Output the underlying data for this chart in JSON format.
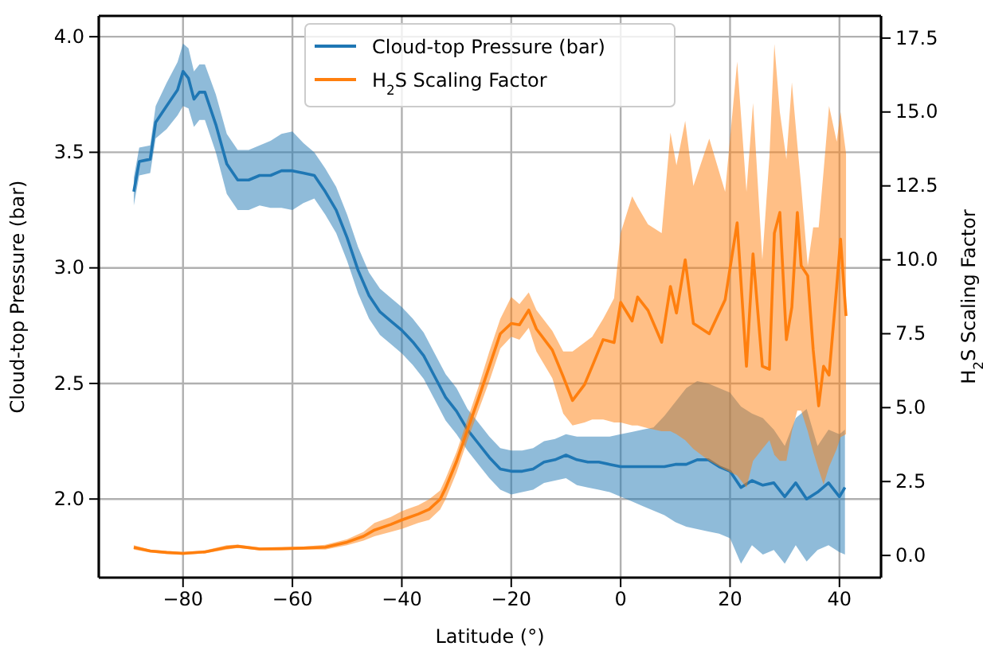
{
  "chart_data": {
    "type": "line",
    "xlabel": "Latitude (°)",
    "ylabel": "Cloud-top Pressure (bar)",
    "y2label": "H$_{2}$S Scaling Factor",
    "xlim": [
      -95.4,
      47.6
    ],
    "xticks": [
      -80,
      -60,
      -40,
      -20,
      0,
      20,
      40
    ],
    "ylim": [
      1.66,
      4.09
    ],
    "yticks": [
      {
        "value": 2.0,
        "label": "2.0"
      },
      {
        "value": 2.5,
        "label": "2.5"
      },
      {
        "value": 3.0,
        "label": "3.0"
      },
      {
        "value": 3.5,
        "label": "3.5"
      },
      {
        "value": 4.0,
        "label": "4.0"
      }
    ],
    "y2lim": [
      -0.75,
      18.25
    ],
    "y2ticks": [
      {
        "value": 0,
        "label": "0.0"
      },
      2.5,
      {
        "value": 5,
        "label": "5.0"
      },
      7.5,
      {
        "value": 10,
        "label": "10.0"
      },
      12.5,
      {
        "value": 15,
        "label": "15.0"
      },
      17.5
    ],
    "grid": true,
    "legend": "top",
    "series": [
      {
        "name": "Cloud-top Pressure (bar)",
        "color": "#1f77b4",
        "x": [
          -89,
          -88,
          -86,
          -85,
          -83,
          -81,
          -80,
          -79,
          -78,
          -77,
          -76,
          -74,
          -72,
          -70,
          -68,
          -66,
          -64,
          -62,
          -60,
          -58,
          -56,
          -54,
          -52,
          -50,
          -48,
          -46,
          -44,
          -42,
          -40,
          -38,
          -36,
          -34,
          -32,
          -30,
          -28,
          -26,
          -24,
          -22,
          -20,
          -18,
          -16,
          -14,
          -12,
          -10,
          -8,
          -6,
          -4,
          -2,
          0,
          2,
          4,
          6,
          8,
          10,
          12,
          14,
          16,
          18,
          20,
          22,
          24,
          26,
          28,
          30,
          32,
          34,
          36,
          38,
          40,
          41
        ],
        "values": [
          3.33,
          3.46,
          3.47,
          3.63,
          3.7,
          3.77,
          3.85,
          3.82,
          3.73,
          3.76,
          3.76,
          3.62,
          3.45,
          3.38,
          3.38,
          3.4,
          3.4,
          3.42,
          3.42,
          3.41,
          3.4,
          3.33,
          3.25,
          3.13,
          2.99,
          2.88,
          2.81,
          2.77,
          2.73,
          2.68,
          2.62,
          2.53,
          2.44,
          2.38,
          2.3,
          2.24,
          2.18,
          2.13,
          2.12,
          2.12,
          2.13,
          2.16,
          2.17,
          2.19,
          2.17,
          2.16,
          2.16,
          2.15,
          2.14,
          2.14,
          2.14,
          2.14,
          2.14,
          2.15,
          2.15,
          2.17,
          2.17,
          2.14,
          2.12,
          2.05,
          2.08,
          2.06,
          2.07,
          2.01,
          2.07,
          2.0,
          2.03,
          2.07,
          2.01,
          2.05
        ],
        "lower": [
          3.27,
          3.4,
          3.41,
          3.56,
          3.6,
          3.66,
          3.7,
          3.69,
          3.61,
          3.64,
          3.64,
          3.5,
          3.32,
          3.25,
          3.25,
          3.27,
          3.26,
          3.26,
          3.25,
          3.28,
          3.3,
          3.23,
          3.15,
          3.03,
          2.89,
          2.78,
          2.71,
          2.67,
          2.63,
          2.58,
          2.52,
          2.43,
          2.34,
          2.28,
          2.21,
          2.15,
          2.09,
          2.04,
          2.02,
          2.03,
          2.04,
          2.07,
          2.08,
          2.09,
          2.06,
          2.05,
          2.04,
          2.03,
          2.01,
          1.99,
          1.97,
          1.95,
          1.93,
          1.9,
          1.88,
          1.87,
          1.86,
          1.85,
          1.83,
          1.72,
          1.8,
          1.76,
          1.78,
          1.72,
          1.8,
          1.73,
          1.78,
          1.8,
          1.77,
          1.76
        ],
        "upper": [
          3.39,
          3.52,
          3.53,
          3.7,
          3.8,
          3.89,
          3.97,
          3.95,
          3.85,
          3.88,
          3.88,
          3.75,
          3.58,
          3.51,
          3.51,
          3.53,
          3.55,
          3.58,
          3.59,
          3.54,
          3.5,
          3.43,
          3.35,
          3.23,
          3.09,
          2.98,
          2.91,
          2.87,
          2.83,
          2.78,
          2.72,
          2.63,
          2.54,
          2.48,
          2.39,
          2.33,
          2.27,
          2.22,
          2.21,
          2.21,
          2.22,
          2.25,
          2.26,
          2.28,
          2.27,
          2.27,
          2.27,
          2.27,
          2.28,
          2.29,
          2.3,
          2.31,
          2.36,
          2.42,
          2.48,
          2.51,
          2.5,
          2.48,
          2.46,
          2.4,
          2.37,
          2.35,
          2.3,
          2.23,
          2.35,
          2.39,
          2.23,
          2.3,
          2.28,
          2.3
        ]
      },
      {
        "name": "H$_{2}$S Scaling Factor",
        "color": "#ff7f0e",
        "axis": "y2",
        "x": [
          -89,
          -86,
          -83,
          -80,
          -76,
          -72,
          -70,
          -66,
          -62,
          -58,
          -54,
          -50,
          -47,
          -45,
          -42,
          -40,
          -37,
          -35,
          -33,
          -32,
          -30,
          -28,
          -26,
          -24,
          -22,
          -20,
          -18.5,
          -16.8,
          -15.4,
          -12.5,
          -10.5,
          -8.8,
          -6.6,
          -5.2,
          -3.2,
          -1.2,
          0,
          2.1,
          3.1,
          5,
          7.5,
          9.1,
          10.2,
          11.8,
          13.3,
          16.2,
          19.1,
          21.3,
          23,
          24.2,
          25.9,
          27.2,
          28.1,
          29.1,
          30.3,
          31.3,
          32.3,
          33,
          34.2,
          35.2,
          36.2,
          37.1,
          38.1,
          39.5,
          40.2,
          41.2
        ],
        "values": [
          0.27,
          0.15,
          0.1,
          0.07,
          0.12,
          0.27,
          0.31,
          0.22,
          0.23,
          0.25,
          0.28,
          0.45,
          0.65,
          0.86,
          1.05,
          1.2,
          1.4,
          1.56,
          1.9,
          2.28,
          3.18,
          4.25,
          5.3,
          6.4,
          7.5,
          7.85,
          7.8,
          8.3,
          7.66,
          6.95,
          6.05,
          5.24,
          5.78,
          6.4,
          7.3,
          7.2,
          8.56,
          7.93,
          8.74,
          8.29,
          7.21,
          9.1,
          8.2,
          10.0,
          7.85,
          7.5,
          8.65,
          11.25,
          6.4,
          10.2,
          6.4,
          6.3,
          10.9,
          11.6,
          7.3,
          8.4,
          11.6,
          9.8,
          9.46,
          6.95,
          5.06,
          6.4,
          6.1,
          9.1,
          10.7,
          8.1
        ],
        "lower": [
          0.2,
          0.1,
          0.05,
          0.02,
          0.07,
          0.2,
          0.25,
          0.17,
          0.18,
          0.2,
          0.2,
          0.35,
          0.5,
          0.65,
          0.8,
          0.9,
          1.1,
          1.2,
          1.55,
          1.9,
          2.8,
          3.9,
          4.9,
          5.9,
          7.0,
          7.4,
          7.3,
          7.7,
          6.9,
          6.0,
          4.8,
          4.4,
          4.5,
          4.6,
          4.6,
          4.5,
          4.5,
          4.4,
          4.4,
          4.3,
          4.2,
          4.2,
          4.1,
          3.9,
          3.6,
          3.2,
          2.9,
          2.7,
          2.3,
          3.2,
          3.6,
          3.9,
          3.4,
          3.2,
          3.2,
          4.2,
          4.9,
          4.9,
          4.2,
          3.5,
          2.9,
          2.4,
          3.0,
          3.6,
          4.0,
          4.1
        ],
        "upper": [
          0.35,
          0.2,
          0.15,
          0.12,
          0.17,
          0.35,
          0.37,
          0.27,
          0.28,
          0.3,
          0.36,
          0.55,
          0.8,
          1.1,
          1.3,
          1.5,
          1.7,
          1.9,
          2.2,
          2.6,
          3.5,
          4.6,
          5.7,
          6.9,
          8.0,
          8.74,
          8.5,
          8.9,
          8.3,
          7.6,
          6.9,
          6.9,
          7.2,
          7.4,
          8.0,
          8.7,
          10.9,
          12.15,
          11.8,
          11.2,
          10.9,
          14.3,
          13.2,
          14.7,
          12.5,
          14.1,
          12.3,
          16.7,
          12.3,
          15.3,
          10.0,
          13.5,
          17.3,
          15.0,
          13.4,
          16.0,
          13.9,
          12.5,
          9.8,
          11.1,
          11.1,
          13.0,
          15.2,
          14.0,
          15.0,
          13.6
        ]
      }
    ]
  }
}
